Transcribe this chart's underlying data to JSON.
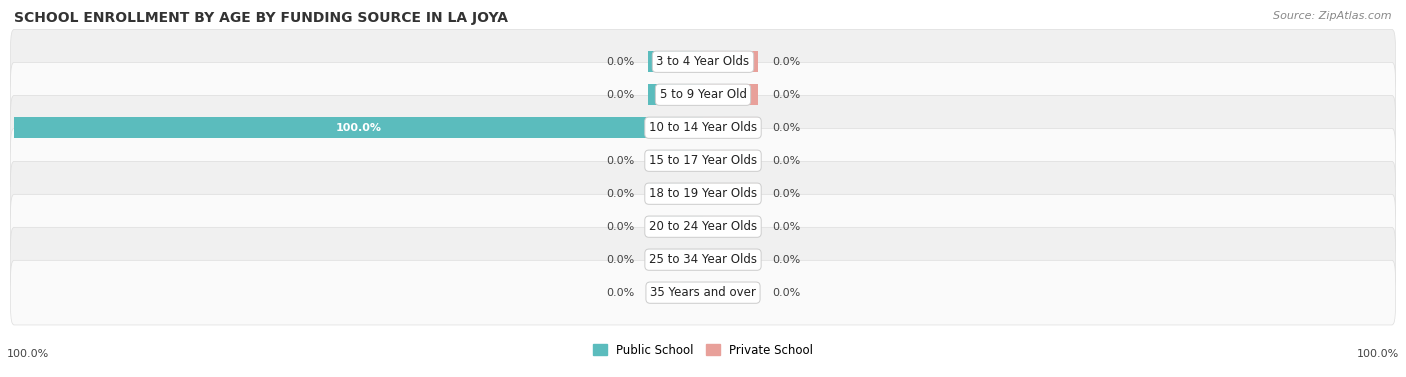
{
  "title": "SCHOOL ENROLLMENT BY AGE BY FUNDING SOURCE IN LA JOYA",
  "source": "Source: ZipAtlas.com",
  "categories": [
    "3 to 4 Year Olds",
    "5 to 9 Year Old",
    "10 to 14 Year Olds",
    "15 to 17 Year Olds",
    "18 to 19 Year Olds",
    "20 to 24 Year Olds",
    "25 to 34 Year Olds",
    "35 Years and over"
  ],
  "public_values": [
    0.0,
    0.0,
    100.0,
    0.0,
    0.0,
    0.0,
    0.0,
    0.0
  ],
  "private_values": [
    0.0,
    0.0,
    0.0,
    0.0,
    0.0,
    0.0,
    0.0,
    0.0
  ],
  "public_color": "#5bbcbd",
  "private_color": "#e8a09a",
  "row_colors": [
    "#f0f0f0",
    "#fafafa"
  ],
  "title_fontsize": 10,
  "source_fontsize": 8,
  "label_fontsize": 8.5,
  "value_fontsize": 8,
  "axis_label_left": "100.0%",
  "axis_label_right": "100.0%",
  "xlim_left": -100,
  "xlim_right": 100,
  "stub_size": 8,
  "legend_public": "Public School",
  "legend_private": "Private School"
}
